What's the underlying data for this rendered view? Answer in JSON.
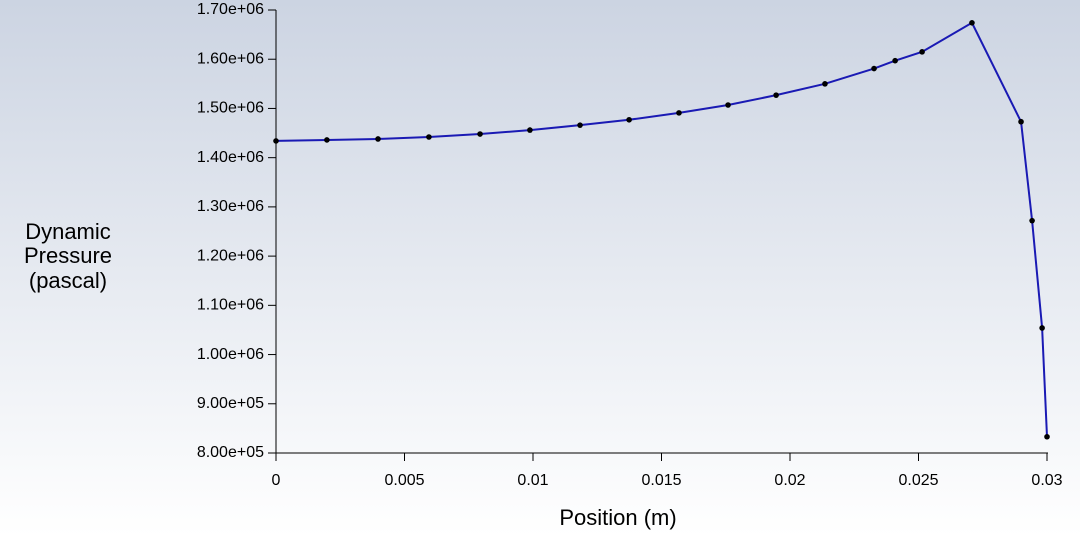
{
  "chart_data": {
    "type": "line",
    "ylabel": [
      "Dynamic",
      "Pressure",
      "(pascal)"
    ],
    "xlabel": "Position (m)",
    "x": [
      0,
      0.00198,
      0.00397,
      0.00595,
      0.00794,
      0.00988,
      0.01183,
      0.01374,
      0.01568,
      0.01759,
      0.01946,
      0.02136,
      0.02327,
      0.02409,
      0.02514,
      0.02708,
      0.02899,
      0.02942,
      0.02981,
      0.03
    ],
    "series": [
      {
        "color": "#1a1ab4",
        "marker_color": "#000000",
        "values": [
          1434000,
          1436000,
          1438000,
          1442000,
          1448000,
          1456000,
          1466000,
          1477000,
          1491000,
          1507000,
          1527000,
          1550000,
          1581000,
          1597000,
          1615000,
          1674000,
          1473000,
          1272000,
          1054000,
          833000
        ]
      }
    ],
    "xlim": [
      0,
      0.03
    ],
    "xticks": [
      0,
      0.005,
      0.01,
      0.015,
      0.02,
      0.025,
      0.03
    ],
    "ylim": [
      800000,
      1700000
    ],
    "yticks": [
      {
        "value": 800000,
        "label": "8.00e+05"
      },
      {
        "value": 900000,
        "label": "9.00e+05"
      },
      {
        "value": 1000000,
        "label": "1.00e+06"
      },
      {
        "value": 1100000,
        "label": "1.10e+06"
      },
      {
        "value": 1200000,
        "label": "1.20e+06"
      },
      {
        "value": 1300000,
        "label": "1.30e+06"
      },
      {
        "value": 1400000,
        "label": "1.40e+06"
      },
      {
        "value": 1500000,
        "label": "1.50e+06"
      },
      {
        "value": 1600000,
        "label": "1.60e+06"
      },
      {
        "value": 1700000,
        "label": "1.70e+06"
      }
    ]
  }
}
